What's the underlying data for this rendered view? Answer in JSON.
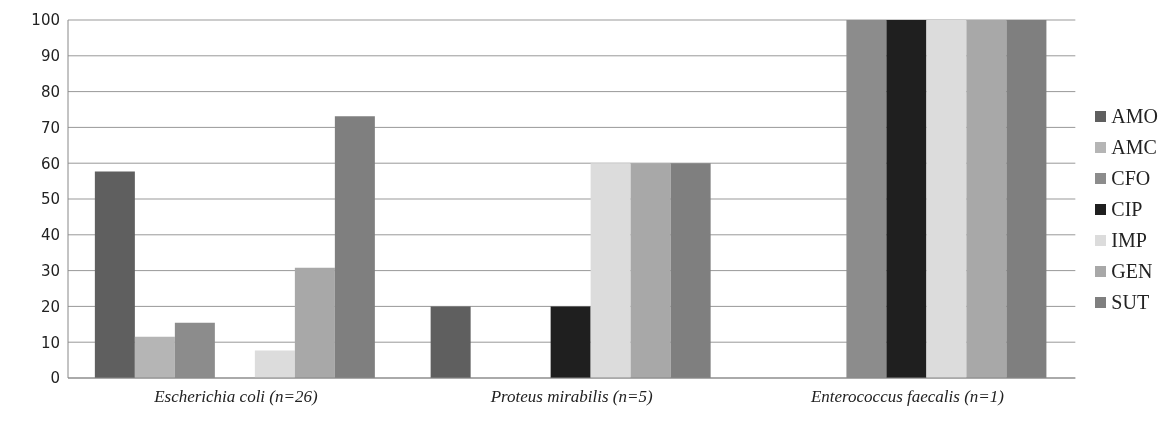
{
  "chart_data": {
    "type": "bar",
    "categories": [
      "Escherichia coli (n=26)",
      "Proteus mirabilis (n=5)",
      "Enterococcus faecalis (n=1)"
    ],
    "series": [
      {
        "name": "AMO",
        "color": "#5f5f5f",
        "values": [
          57.7,
          20,
          0
        ]
      },
      {
        "name": "AMC",
        "color": "#b5b5b5",
        "values": [
          11.5,
          0,
          0
        ]
      },
      {
        "name": "CFO",
        "color": "#8c8c8c",
        "values": [
          15.4,
          0,
          100
        ]
      },
      {
        "name": "CIP",
        "color": "#1f1f1f",
        "values": [
          0,
          20,
          100
        ]
      },
      {
        "name": "IMP",
        "color": "#dcdcdc",
        "values": [
          7.7,
          60,
          100
        ]
      },
      {
        "name": "GEN",
        "color": "#a8a8a8",
        "values": [
          30.8,
          60,
          100
        ]
      },
      {
        "name": "SUT",
        "color": "#7f7f7f",
        "values": [
          73.1,
          60,
          100
        ]
      }
    ],
    "ylim": [
      0,
      100
    ],
    "yticks": [
      0,
      10,
      20,
      30,
      40,
      50,
      60,
      70,
      80,
      90,
      100
    ],
    "grid": "y",
    "legend": "right"
  }
}
